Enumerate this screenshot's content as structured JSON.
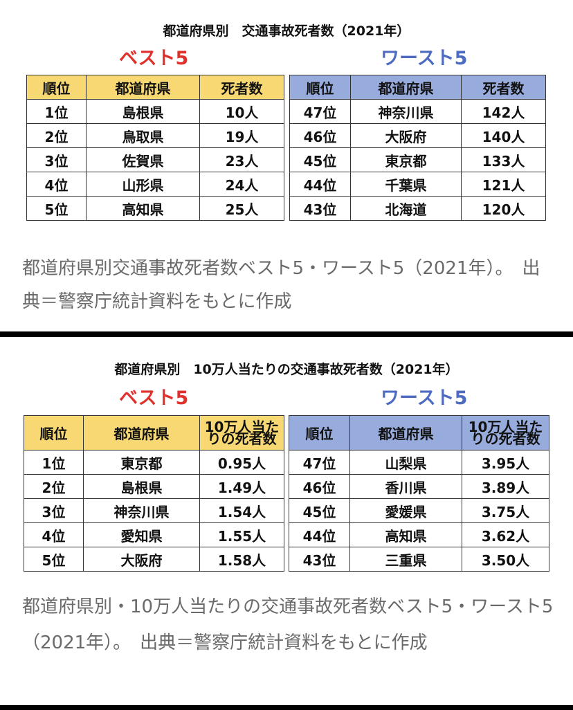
{
  "panel1": {
    "title": "都道府県別　交通事故死者数（2021年）",
    "best_label": "ベスト5",
    "worst_label": "ワースト5",
    "best": {
      "headers": [
        "順位",
        "都道府県",
        "死者数"
      ],
      "rows": [
        [
          "1位",
          "島根県",
          "10人"
        ],
        [
          "2位",
          "鳥取県",
          "19人"
        ],
        [
          "3位",
          "佐賀県",
          "23人"
        ],
        [
          "4位",
          "山形県",
          "24人"
        ],
        [
          "5位",
          "高知県",
          "25人"
        ]
      ]
    },
    "worst": {
      "headers": [
        "順位",
        "都道府県",
        "死者数"
      ],
      "rows": [
        [
          "47位",
          "神奈川県",
          "142人"
        ],
        [
          "46位",
          "大阪府",
          "140人"
        ],
        [
          "45位",
          "東京都",
          "133人"
        ],
        [
          "44位",
          "千葉県",
          "121人"
        ],
        [
          "43位",
          "北海道",
          "120人"
        ]
      ]
    },
    "caption": "都道府県別交通事故死者数ベスト5・ワースト5（2021年）。　出典＝警察庁統計資料をもとに作成"
  },
  "panel2": {
    "title": "都道府県別　10万人当たりの交通事故死者数（2021年）",
    "best_label": "ベスト5",
    "worst_label": "ワースト5",
    "best": {
      "headers": [
        "順位",
        "都道府県",
        "10万人当たりの死者数"
      ],
      "rows": [
        [
          "1位",
          "東京都",
          "0.95人"
        ],
        [
          "2位",
          "島根県",
          "1.49人"
        ],
        [
          "3位",
          "神奈川県",
          "1.54人"
        ],
        [
          "4位",
          "愛知県",
          "1.55人"
        ],
        [
          "5位",
          "大阪府",
          "1.58人"
        ]
      ]
    },
    "worst": {
      "headers": [
        "順位",
        "都道府県",
        "10万人当たりの死者数"
      ],
      "rows": [
        [
          "47位",
          "山梨県",
          "3.95人"
        ],
        [
          "46位",
          "香川県",
          "3.89人"
        ],
        [
          "45位",
          "愛媛県",
          "3.75人"
        ],
        [
          "44位",
          "高知県",
          "3.62人"
        ],
        [
          "43位",
          "三重県",
          "3.50人"
        ]
      ]
    },
    "caption": "都道府県別・10万人当たりの交通事故死者数ベスト5・ワースト5（2021年）。　出典＝警察庁統計資料をもとに作成"
  }
}
